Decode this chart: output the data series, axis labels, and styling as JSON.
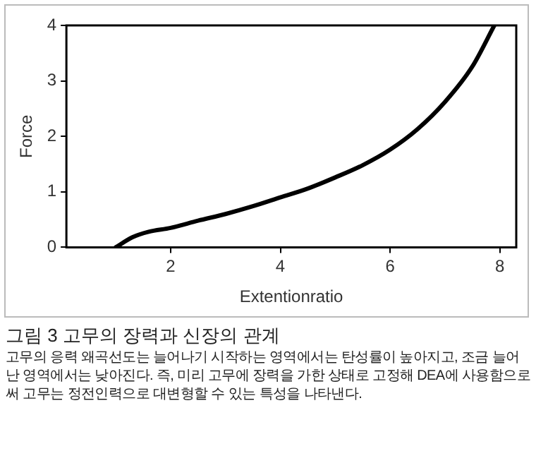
{
  "chart_data": {
    "type": "line",
    "title": "그림 3 고무의 장력과 신장의 관계",
    "xlabel": "Extentionratio",
    "ylabel": "Force",
    "x": [
      1.0,
      1.3,
      1.6,
      2,
      2.5,
      3,
      3.5,
      4,
      4.5,
      5,
      5.5,
      6,
      6.5,
      7,
      7.5,
      7.9
    ],
    "series": [
      {
        "color": "#000000",
        "values": [
          0,
          0.18,
          0.28,
          0.35,
          0.48,
          0.6,
          0.74,
          0.9,
          1.06,
          1.26,
          1.48,
          1.76,
          2.13,
          2.62,
          3.26,
          4
        ]
      }
    ],
    "xlim": [
      0.1,
      8.3
    ],
    "xticks": [
      2,
      4,
      6,
      8
    ],
    "ylim": [
      0,
      4
    ],
    "yticks": [
      0,
      1,
      2,
      3,
      4
    ],
    "grid": false,
    "legend": false,
    "marker": "none",
    "line_style": "solid",
    "annotations": [
      "고무의 응력 왜곡선도는 늘어나기 시작하는 영역에서는 탄성률이 높아지고, 조금 늘어난 영역에서는 낮아진다. 즉, 미리 고무에 장력을 가한 상태로 고정해 DEA에 사용함으로써 고무는 정전인력으로 대변형할 수 있는 특성을 나타낸다."
    ]
  }
}
